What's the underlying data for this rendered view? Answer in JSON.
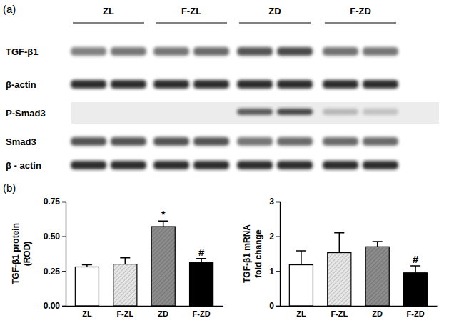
{
  "panel_labels": [
    "(a)",
    "(b)"
  ],
  "blot": {
    "groups": [
      "ZL",
      "F-ZL",
      "ZD",
      "F-ZD"
    ],
    "rows": [
      "TGF-β1",
      "β-actin",
      "P-Smad3",
      "Smad3",
      "β - actin"
    ]
  },
  "chart_data": [
    {
      "type": "bar",
      "ylabel": [
        "TGF-β1 protein",
        "(ROD)"
      ],
      "categories": [
        "ZL",
        "F-ZL",
        "ZD",
        "F-ZD"
      ],
      "values": [
        0.28,
        0.3,
        0.57,
        0.31
      ],
      "errors": [
        0.015,
        0.045,
        0.04,
        0.03
      ],
      "colors": [
        "#ffffff",
        "#e6e6e6",
        "#8c8c8c",
        "#000000"
      ],
      "ylim": [
        0,
        0.75
      ],
      "yticks": [
        {
          "value": 0,
          "label": "0.00"
        },
        {
          "value": 0.25,
          "label": "0.25"
        },
        {
          "value": 0.5,
          "label": "0.50"
        },
        {
          "value": 0.75,
          "label": "0.75"
        }
      ],
      "annotations": [
        {
          "category": "ZD",
          "text": "*"
        },
        {
          "category": "F-ZD",
          "text": "#"
        }
      ]
    },
    {
      "type": "bar",
      "ylabel": [
        "TGF-β1 mRNA",
        "fold change"
      ],
      "categories": [
        "ZL",
        "F-ZL",
        "ZD",
        "F-ZD"
      ],
      "values": [
        1.18,
        1.53,
        1.7,
        0.95
      ],
      "errors": [
        0.4,
        0.57,
        0.15,
        0.2
      ],
      "colors": [
        "#ffffff",
        "#e6e6e6",
        "#8c8c8c",
        "#000000"
      ],
      "ylim": [
        0,
        3
      ],
      "yticks": [
        0,
        1,
        2,
        3
      ],
      "annotations": [
        {
          "category": "F-ZD",
          "text": "#"
        }
      ]
    }
  ]
}
